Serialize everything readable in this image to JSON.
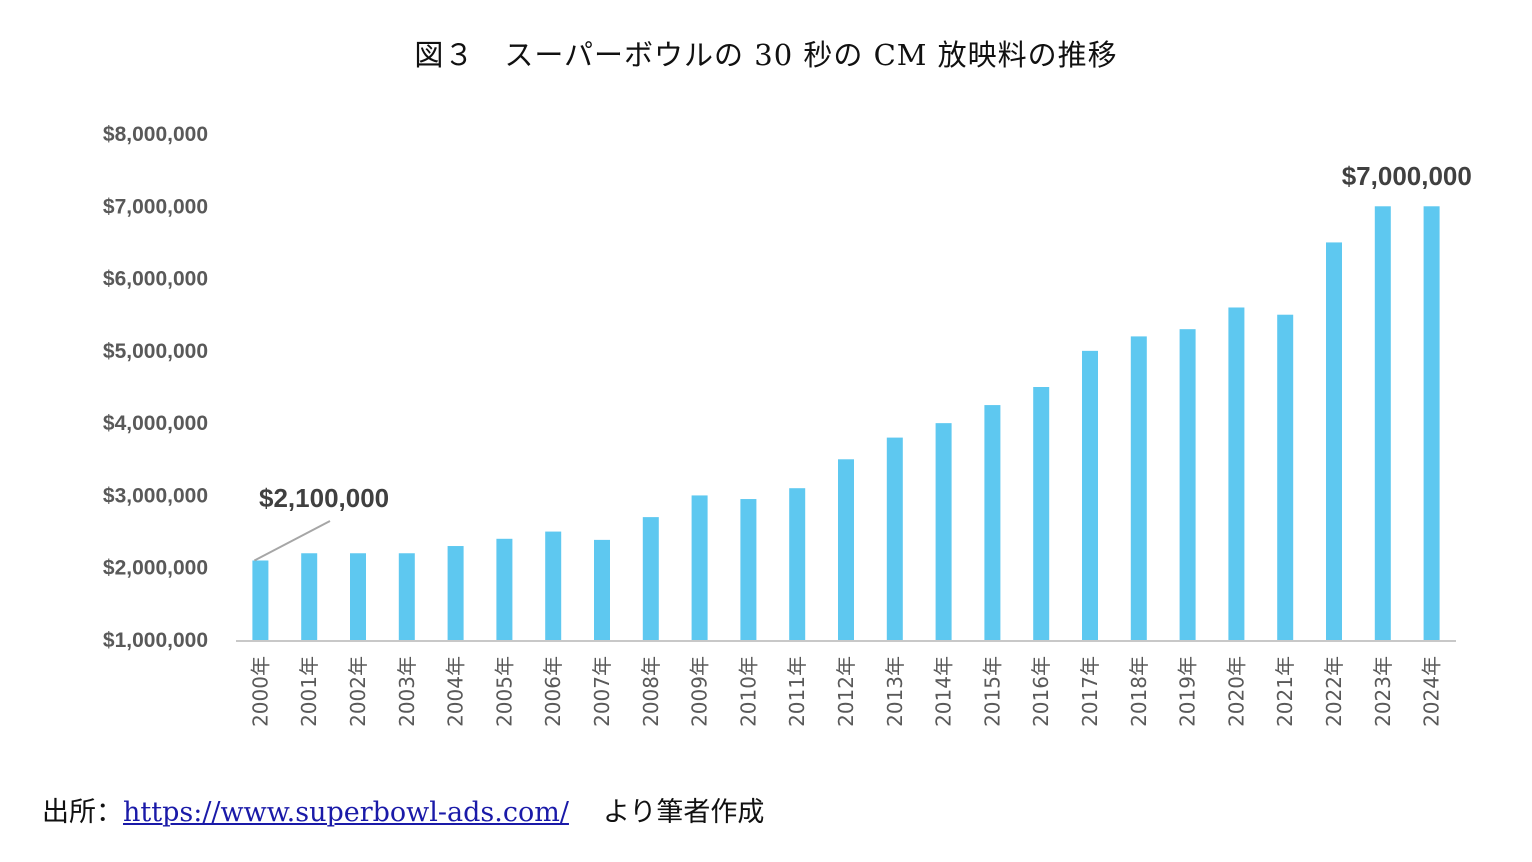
{
  "chart_data": {
    "type": "bar",
    "title": "図３　スーパーボウルの 30 秒の CM 放映料の推移",
    "xlabel": "",
    "ylabel": "",
    "categories": [
      "2000年",
      "2001年",
      "2002年",
      "2003年",
      "2004年",
      "2005年",
      "2006年",
      "2007年",
      "2008年",
      "2009年",
      "2010年",
      "2011年",
      "2012年",
      "2013年",
      "2014年",
      "2015年",
      "2016年",
      "2017年",
      "2018年",
      "2019年",
      "2020年",
      "2021年",
      "2022年",
      "2023年",
      "2024年"
    ],
    "values": [
      2100000,
      2200000,
      2200000,
      2200000,
      2300000,
      2400000,
      2500000,
      2385000,
      2700000,
      3000000,
      2950000,
      3100000,
      3500000,
      3800000,
      4000000,
      4250000,
      4500000,
      5000000,
      5200000,
      5300000,
      5600000,
      5500000,
      6500000,
      7000000,
      7000000
    ],
    "ylim": [
      1000000,
      8000000
    ],
    "yticks": [
      1000000,
      2000000,
      3000000,
      4000000,
      5000000,
      6000000,
      7000000,
      8000000
    ],
    "ytick_labels": [
      "$1,000,000",
      "$2,000,000",
      "$3,000,000",
      "$4,000,000",
      "$5,000,000",
      "$6,000,000",
      "$7,000,000",
      "$8,000,000"
    ],
    "grid": false,
    "bar_color": "#5ec8f0",
    "annotations": [
      {
        "category": "2000年",
        "text": "$2,100,000",
        "leader_line": true
      },
      {
        "category": "2023年",
        "text": "$7,000,000",
        "leader_line": false
      }
    ]
  },
  "source": {
    "prefix": "出所：",
    "link": "https://www.superbowl-ads.com/",
    "suffix": "より筆者作成"
  }
}
